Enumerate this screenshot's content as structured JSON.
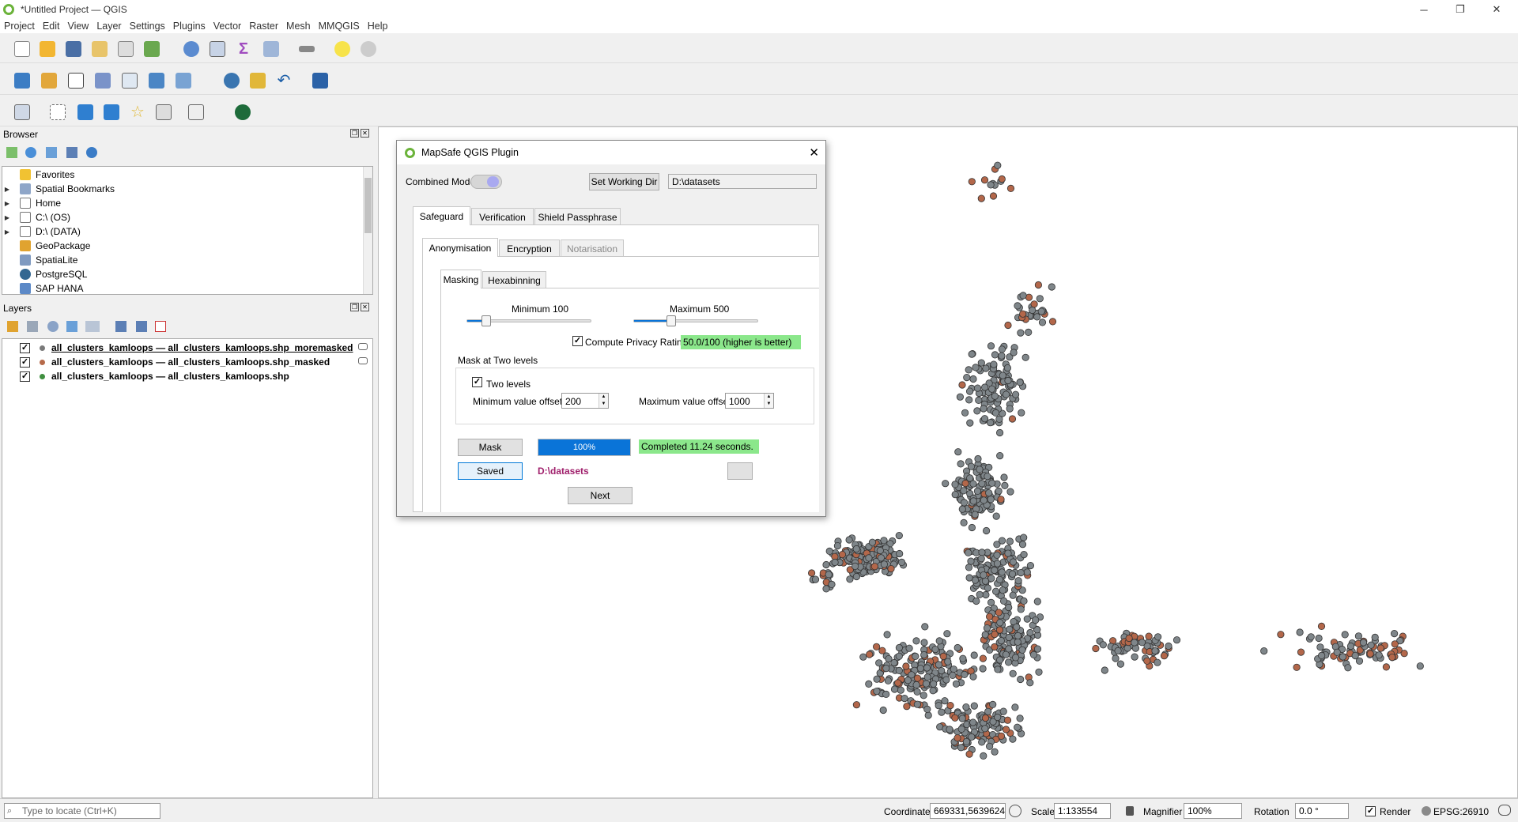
{
  "window": {
    "title": "*Untitled Project — QGIS"
  },
  "menu": [
    "Project",
    "Edit",
    "View",
    "Layer",
    "Settings",
    "Plugins",
    "Vector",
    "Raster",
    "Mesh",
    "MMQGIS",
    "Help"
  ],
  "browser": {
    "title": "Browser",
    "items": [
      {
        "label": "Favorites",
        "icon": "star-icon",
        "expandable": false
      },
      {
        "label": "Spatial Bookmarks",
        "icon": "bookmark-icon",
        "expandable": true
      },
      {
        "label": "Home",
        "icon": "folder-icon",
        "expandable": true
      },
      {
        "label": "C:\\ (OS)",
        "icon": "drive-icon",
        "expandable": true
      },
      {
        "label": "D:\\ (DATA)",
        "icon": "drive-icon",
        "expandable": true
      },
      {
        "label": "GeoPackage",
        "icon": "geopackage-icon",
        "expandable": false
      },
      {
        "label": "SpatiaLite",
        "icon": "spatialite-icon",
        "expandable": false
      },
      {
        "label": "PostgreSQL",
        "icon": "postgresql-icon",
        "expandable": false
      },
      {
        "label": "SAP HANA",
        "icon": "database-icon",
        "expandable": false
      }
    ]
  },
  "layers": {
    "title": "Layers",
    "items": [
      {
        "label": "all_clusters_kamloops — all_clusters_kamloops.shp_moremasked",
        "checked": "✓",
        "color": "#7a7a7a"
      },
      {
        "label": "all_clusters_kamloops — all_clusters_kamloops.shp_masked",
        "checked": "✓",
        "color": "#b66a4a"
      },
      {
        "label": "all_clusters_kamloops — all_clusters_kamloops.shp",
        "checked": "✓",
        "color": "#3f8f3f"
      }
    ]
  },
  "dialog": {
    "title": "MapSafe QGIS Plugin",
    "combined_mode_label": "Combined Mode",
    "set_working_dir_label": "Set Working Dir",
    "working_dir_value": "D:\\datasets",
    "tabs": [
      "Safeguard",
      "Verification",
      "Shield Passphrase"
    ],
    "subtabs": [
      "Anonymisation",
      "Encryption",
      "Notarisation"
    ],
    "innertabs": [
      "Masking",
      "Hexabinning"
    ],
    "min_label": "Minimum  100",
    "max_label": "Maximum 500",
    "min_value": 100,
    "max_value": 500,
    "compute_privacy_label": "Compute Privacy Rating",
    "privacy_rating": "50.0/100 (higher is better)",
    "mask_two_levels_title": "Mask at Two levels",
    "two_levels_label": "Two levels",
    "min_offset_label": "Minimum value offset",
    "min_offset_value": "200",
    "max_offset_label": "Maximum value offset",
    "max_offset_value": "1000",
    "mask_button": "Mask",
    "progress_text": "100%",
    "progress": 1.0,
    "completed_text": "Completed 11.24 seconds.",
    "saved_button": "Saved",
    "saved_path": "D:\\datasets",
    "next_button": "Next",
    "check": "✓"
  },
  "statusbar": {
    "locate_placeholder": "Type to locate (Ctrl+K)",
    "coordinate_label": "Coordinate",
    "coordinate_value": "669331,5639624",
    "scale_label": "Scale",
    "scale_value": "1:133554",
    "magnifier_label": "Magnifier",
    "magnifier_value": "100%",
    "rotation_label": "Rotation",
    "rotation_value": "0.0 °",
    "render_label": "Render",
    "crs_label": "EPSG:26910"
  },
  "colors": {
    "point_gray": "#7f868a",
    "point_brown": "#b3674a",
    "progress_blue": "#0a74d8",
    "green_label": "#8be78b",
    "saved_path_color": "#a0206c"
  }
}
